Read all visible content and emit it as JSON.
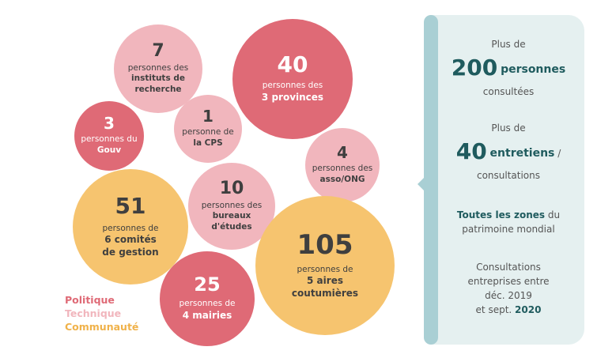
{
  "bubbles": {
    "instituts": {
      "value": "7",
      "line1": "personnes des",
      "line2": "instituts de",
      "line3": "recherche"
    },
    "provinces": {
      "value": "40",
      "line1": "personnes des",
      "line2": "3 provinces"
    },
    "gouv": {
      "value": "3",
      "line1": "personnes du",
      "line2": "Gouv"
    },
    "cps": {
      "value": "1",
      "line1": "personne de",
      "line2": "la CPS"
    },
    "asso": {
      "value": "4",
      "line1": "personnes des",
      "line2": "asso/ONG"
    },
    "comites": {
      "value": "51",
      "line1": "personnes de",
      "line2": "6 comités",
      "line3": "de gestion"
    },
    "bureaux": {
      "value": "10",
      "line1": "personnes des",
      "line2": "bureaux",
      "line3": "d'études"
    },
    "aires": {
      "value": "105",
      "line1": "personnes de",
      "line2": "5 aires",
      "line3": "coutumières"
    },
    "mairies": {
      "value": "25",
      "line1": "personnes de",
      "line2": "4 mairies"
    }
  },
  "legend": {
    "politique": "Politique",
    "technique": "Technique",
    "communaute": "Communauté"
  },
  "colors": {
    "politique": "#df6a76",
    "technique": "#f1b6bd",
    "communaute": "#f6c46f",
    "accent": "#1f5b5e",
    "panel": "#e5f0f0"
  },
  "panel": {
    "b1": {
      "pre": "Plus de",
      "num": "200",
      "word": "personnes",
      "post": "consultées"
    },
    "b2": {
      "pre": "Plus de",
      "num": "40",
      "word": "entretiens",
      "slash": " /",
      "post": "consultations"
    },
    "b3": {
      "strong": "Toutes les zones",
      "rest": " du",
      "line2": "patrimoine mondial"
    },
    "b4": {
      "l1": "Consultations",
      "l2": "entreprises entre",
      "l3": "déc. 2019",
      "l4a": "et sept. ",
      "l4b": "2020"
    }
  }
}
